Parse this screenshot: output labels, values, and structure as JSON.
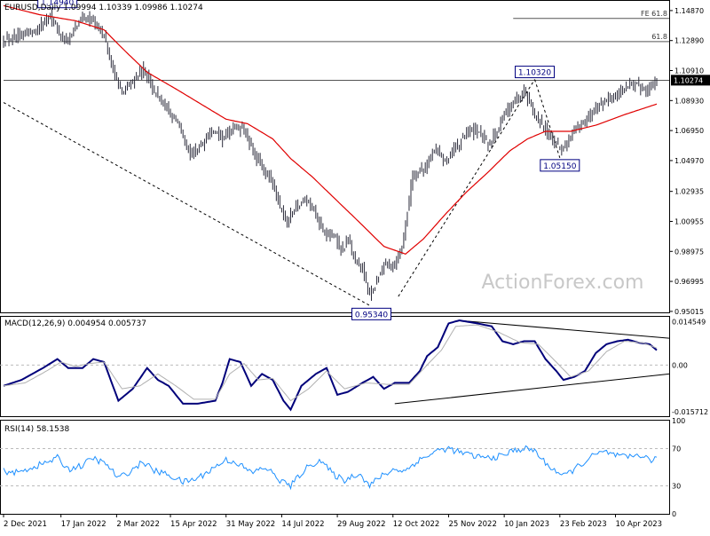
{
  "colors": {
    "background": "#ffffff",
    "candles": "#2b2b3a",
    "ma_line": "#e00000",
    "macd_line": "#00007a",
    "signal_line": "#b0b0b0",
    "level_lines": "#555555",
    "watermark": "#c8c8c8",
    "label_border": "#000080"
  },
  "watermark": "ActionForex.com",
  "chart_data": [
    {
      "type": "candlestick",
      "panel": "price",
      "title": "EURUSD,Daily  1.09994 1.10339 1.09986 1.10274",
      "ylim": [
        0.9495,
        1.1545
      ],
      "y_ticks": [
        "1.14870",
        "1.12890",
        "1.10910",
        "1.08930",
        "1.06950",
        "1.04970",
        "1.02935",
        "1.00955",
        "0.98975",
        "0.96995",
        "0.95015"
      ],
      "y_tick_values": [
        1.1487,
        1.1289,
        1.1091,
        1.0893,
        1.0695,
        1.0497,
        1.02935,
        1.00955,
        0.98975,
        0.96995,
        0.95015
      ],
      "x_ticks": [
        "2 Dec 2021",
        "17 Jan 2022",
        "2 Mar 2022",
        "15 Apr 2022",
        "31 May 2022",
        "14 Jul 2022",
        "29 Aug 2022",
        "12 Oct 2022",
        "25 Nov 2022",
        "10 Jan 2023",
        "23 Feb 2023",
        "10 Apr 2023"
      ],
      "x_tick_index": [
        0,
        32,
        63,
        93,
        124,
        155,
        186,
        217,
        248,
        279,
        310,
        341
      ],
      "n_bars": 365,
      "anchors": [
        [
          0,
          1.13
        ],
        [
          12,
          1.133
        ],
        [
          20,
          1.138
        ],
        [
          26,
          1.147
        ],
        [
          30,
          1.135
        ],
        [
          36,
          1.128
        ],
        [
          42,
          1.142
        ],
        [
          48,
          1.144
        ],
        [
          56,
          1.132
        ],
        [
          62,
          1.105
        ],
        [
          66,
          1.095
        ],
        [
          72,
          1.102
        ],
        [
          78,
          1.11
        ],
        [
          84,
          1.095
        ],
        [
          90,
          1.085
        ],
        [
          96,
          1.077
        ],
        [
          100,
          1.065
        ],
        [
          104,
          1.054
        ],
        [
          110,
          1.06
        ],
        [
          116,
          1.07
        ],
        [
          122,
          1.064
        ],
        [
          128,
          1.072
        ],
        [
          134,
          1.07
        ],
        [
          138,
          1.058
        ],
        [
          144,
          1.045
        ],
        [
          150,
          1.035
        ],
        [
          154,
          1.019
        ],
        [
          158,
          1.008
        ],
        [
          162,
          1.018
        ],
        [
          168,
          1.025
        ],
        [
          174,
          1.015
        ],
        [
          178,
          1.002
        ],
        [
          184,
          1.0
        ],
        [
          188,
          0.99
        ],
        [
          192,
          0.997
        ],
        [
          196,
          0.983
        ],
        [
          200,
          0.978
        ],
        [
          204,
          0.96
        ],
        [
          208,
          0.97
        ],
        [
          212,
          0.982
        ],
        [
          216,
          0.978
        ],
        [
          222,
          0.992
        ],
        [
          228,
          1.04
        ],
        [
          234,
          1.043
        ],
        [
          240,
          1.058
        ],
        [
          246,
          1.05
        ],
        [
          252,
          1.058
        ],
        [
          258,
          1.068
        ],
        [
          264,
          1.069
        ],
        [
          270,
          1.06
        ],
        [
          276,
          1.073
        ],
        [
          282,
          1.085
        ],
        [
          286,
          1.09
        ],
        [
          290,
          1.095
        ],
        [
          296,
          1.08
        ],
        [
          302,
          1.07
        ],
        [
          306,
          1.062
        ],
        [
          310,
          1.057
        ],
        [
          314,
          1.062
        ],
        [
          318,
          1.07
        ],
        [
          324,
          1.075
        ],
        [
          330,
          1.085
        ],
        [
          336,
          1.09
        ],
        [
          342,
          1.093
        ],
        [
          348,
          1.1
        ],
        [
          354,
          1.099
        ],
        [
          358,
          1.097
        ],
        [
          364,
          1.1027
        ]
      ],
      "ma_anchors": [
        [
          0,
          1.152
        ],
        [
          20,
          1.146
        ],
        [
          40,
          1.142
        ],
        [
          56,
          1.136
        ],
        [
          66,
          1.124
        ],
        [
          80,
          1.108
        ],
        [
          96,
          1.097
        ],
        [
          110,
          1.087
        ],
        [
          124,
          1.077
        ],
        [
          136,
          1.074
        ],
        [
          150,
          1.064
        ],
        [
          160,
          1.051
        ],
        [
          172,
          1.039
        ],
        [
          186,
          1.023
        ],
        [
          200,
          1.007
        ],
        [
          212,
          0.993
        ],
        [
          224,
          0.988
        ],
        [
          234,
          0.998
        ],
        [
          246,
          1.014
        ],
        [
          258,
          1.029
        ],
        [
          270,
          1.042
        ],
        [
          282,
          1.056
        ],
        [
          292,
          1.064
        ],
        [
          302,
          1.069
        ],
        [
          316,
          1.069
        ],
        [
          330,
          1.073
        ],
        [
          346,
          1.08
        ],
        [
          364,
          1.087
        ]
      ],
      "levels": [
        {
          "label": "FE 61.8",
          "value": 1.1435,
          "start_index": 284
        },
        {
          "label": "61.8",
          "value": 1.1282,
          "start_index": 0
        },
        {
          "label": "",
          "value": 1.1027,
          "start_index": 0
        }
      ],
      "current_price": "1.10274",
      "current_value": 1.10274,
      "point_labels": [
        {
          "text": "1.14940",
          "index": 30,
          "value": 1.1494
        },
        {
          "text": "1.10320",
          "index": 296,
          "value": 1.1032
        },
        {
          "text": "1.05150",
          "index": 310,
          "value": 1.0515
        },
        {
          "text": "0.95340",
          "index": 205,
          "value": 0.9534
        }
      ],
      "dashed_lines": [
        [
          [
            0,
            1.088
          ],
          [
            205,
            0.9534
          ]
        ],
        [
          [
            220,
            0.96
          ],
          [
            296,
            1.1032
          ]
        ],
        [
          [
            296,
            1.1032
          ],
          [
            310,
            1.0515
          ]
        ]
      ]
    },
    {
      "type": "line",
      "panel": "macd",
      "title": "MACD(12,26,9) 0.004954 0.005737",
      "ylim": [
        -0.0172,
        0.0162
      ],
      "y_ticks": [
        "0.014549",
        "0.00",
        "-0.015712"
      ],
      "y_tick_values": [
        0.014549,
        0.0,
        -0.015712
      ],
      "series": [
        {
          "name": "MACD",
          "anchors": [
            [
              0,
              -0.007
            ],
            [
              10,
              -0.005
            ],
            [
              22,
              -0.001
            ],
            [
              30,
              0.002
            ],
            [
              36,
              -0.001
            ],
            [
              44,
              -0.001
            ],
            [
              50,
              0.002
            ],
            [
              56,
              0.001
            ],
            [
              64,
              -0.012
            ],
            [
              72,
              -0.008
            ],
            [
              80,
              -0.001
            ],
            [
              86,
              -0.005
            ],
            [
              92,
              -0.007
            ],
            [
              100,
              -0.013
            ],
            [
              108,
              -0.013
            ],
            [
              118,
              -0.012
            ],
            [
              122,
              -0.006
            ],
            [
              126,
              0.002
            ],
            [
              132,
              0.001
            ],
            [
              138,
              -0.007
            ],
            [
              144,
              -0.003
            ],
            [
              150,
              -0.005
            ],
            [
              156,
              -0.012
            ],
            [
              160,
              -0.015
            ],
            [
              166,
              -0.007
            ],
            [
              174,
              -0.003
            ],
            [
              180,
              -0.001
            ],
            [
              186,
              -0.01
            ],
            [
              192,
              -0.009
            ],
            [
              200,
              -0.006
            ],
            [
              206,
              -0.004
            ],
            [
              212,
              -0.008
            ],
            [
              218,
              -0.006
            ],
            [
              226,
              -0.006
            ],
            [
              232,
              -0.002
            ],
            [
              236,
              0.003
            ],
            [
              242,
              0.006
            ],
            [
              248,
              0.014
            ],
            [
              254,
              0.015
            ],
            [
              264,
              0.014
            ],
            [
              272,
              0.013
            ],
            [
              278,
              0.008
            ],
            [
              284,
              0.007
            ],
            [
              290,
              0.008
            ],
            [
              296,
              0.008
            ],
            [
              302,
              0.002
            ],
            [
              308,
              -0.002
            ],
            [
              312,
              -0.005
            ],
            [
              318,
              -0.004
            ],
            [
              324,
              -0.002
            ],
            [
              330,
              0.004
            ],
            [
              336,
              0.007
            ],
            [
              342,
              0.008
            ],
            [
              348,
              0.0085
            ],
            [
              354,
              0.0075
            ],
            [
              360,
              0.007
            ],
            [
              364,
              0.005
            ]
          ]
        },
        {
          "name": "Signal",
          "anchors": [
            [
              0,
              -0.007
            ],
            [
              12,
              -0.006
            ],
            [
              24,
              -0.002
            ],
            [
              32,
              0.001
            ],
            [
              40,
              -0.0005
            ],
            [
              48,
              0.0005
            ],
            [
              56,
              0.001
            ],
            [
              66,
              -0.008
            ],
            [
              76,
              -0.007
            ],
            [
              86,
              -0.003
            ],
            [
              96,
              -0.007
            ],
            [
              106,
              -0.0115
            ],
            [
              118,
              -0.0115
            ],
            [
              126,
              -0.003
            ],
            [
              134,
              0.0005
            ],
            [
              142,
              -0.005
            ],
            [
              150,
              -0.0045
            ],
            [
              160,
              -0.012
            ],
            [
              170,
              -0.008
            ],
            [
              180,
              -0.002
            ],
            [
              190,
              -0.008
            ],
            [
              202,
              -0.006
            ],
            [
              214,
              -0.0065
            ],
            [
              226,
              -0.0065
            ],
            [
              236,
              0.0
            ],
            [
              244,
              0.005
            ],
            [
              252,
              0.013
            ],
            [
              264,
              0.0135
            ],
            [
              276,
              0.011
            ],
            [
              288,
              0.0075
            ],
            [
              298,
              0.007
            ],
            [
              308,
              0.001
            ],
            [
              316,
              -0.004
            ],
            [
              326,
              -0.002
            ],
            [
              336,
              0.0045
            ],
            [
              346,
              0.008
            ],
            [
              356,
              0.0075
            ],
            [
              364,
              0.0057
            ]
          ]
        }
      ],
      "trendlines": [
        [
          [
            253,
            0.015
          ],
          [
            364,
            0.009
          ]
        ],
        [
          [
            218,
            -0.013
          ],
          [
            364,
            -0.003
          ]
        ]
      ]
    },
    {
      "type": "line",
      "panel": "rsi",
      "title": "RSI(14) 58.1538",
      "ylim": [
        0,
        100
      ],
      "y_ticks": [
        "100",
        "70",
        "30",
        "0"
      ],
      "y_tick_values": [
        100,
        70,
        30,
        0
      ],
      "levels": [
        70,
        30
      ],
      "series": [
        {
          "name": "RSI",
          "anchors": [
            [
              0,
              46
            ],
            [
              8,
              44
            ],
            [
              16,
              50
            ],
            [
              24,
              55
            ],
            [
              30,
              60
            ],
            [
              36,
              48
            ],
            [
              44,
              52
            ],
            [
              50,
              60
            ],
            [
              58,
              52
            ],
            [
              64,
              38
            ],
            [
              70,
              45
            ],
            [
              78,
              56
            ],
            [
              84,
              46
            ],
            [
              92,
              42
            ],
            [
              100,
              34
            ],
            [
              108,
              38
            ],
            [
              116,
              48
            ],
            [
              124,
              58
            ],
            [
              130,
              55
            ],
            [
              138,
              44
            ],
            [
              146,
              50
            ],
            [
              154,
              36
            ],
            [
              160,
              30
            ],
            [
              168,
              48
            ],
            [
              176,
              58
            ],
            [
              184,
              42
            ],
            [
              190,
              36
            ],
            [
              198,
              44
            ],
            [
              204,
              30
            ],
            [
              210,
              40
            ],
            [
              218,
              48
            ],
            [
              224,
              46
            ],
            [
              230,
              56
            ],
            [
              236,
              62
            ],
            [
              242,
              68
            ],
            [
              248,
              70
            ],
            [
              254,
              66
            ],
            [
              262,
              62
            ],
            [
              270,
              60
            ],
            [
              278,
              62
            ],
            [
              284,
              68
            ],
            [
              290,
              70
            ],
            [
              296,
              68
            ],
            [
              302,
              54
            ],
            [
              308,
              46
            ],
            [
              312,
              40
            ],
            [
              318,
              48
            ],
            [
              324,
              56
            ],
            [
              330,
              64
            ],
            [
              336,
              66
            ],
            [
              342,
              62
            ],
            [
              348,
              60
            ],
            [
              354,
              64
            ],
            [
              360,
              58
            ],
            [
              364,
              58
            ]
          ]
        }
      ]
    }
  ]
}
